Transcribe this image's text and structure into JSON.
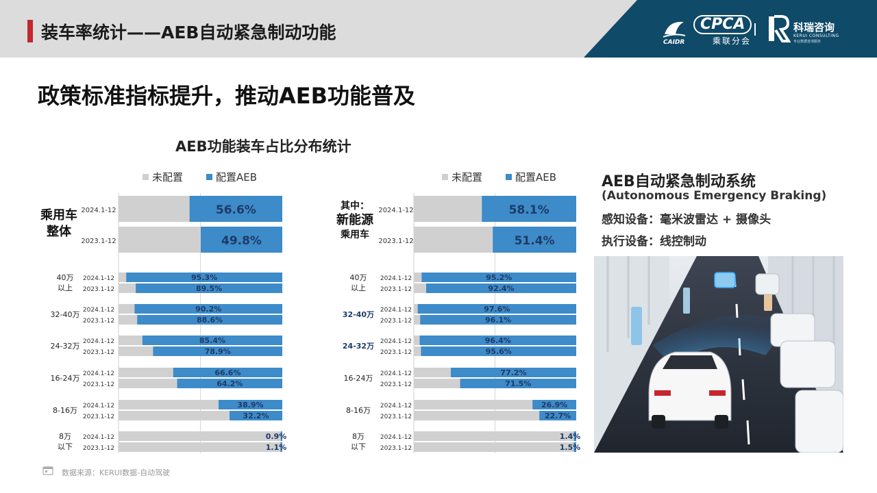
{
  "header": {
    "title": "装车率统计——AEB自动紧急制动功能",
    "logos": {
      "cpca_text": "CPCA",
      "cpca_sub": "乘联分会",
      "cpca_caidr": "CAIDR",
      "kerui_name": "科瑞咨询",
      "kerui_en": "KERUI CONSULTING",
      "kerui_tagline": "专业数据咨询服务"
    }
  },
  "slide_title": "政策标准指标提升，推动AEB功能普及",
  "chart_title": "AEB功能装车占比分布统计",
  "legend": {
    "not_configured": "未配置",
    "configured": "配置AEB"
  },
  "colors": {
    "configured": "#3d8bc9",
    "not_configured": "#d0d0d0",
    "value_text": "#1f3a66",
    "accent": "#c0282e"
  },
  "right_panel": {
    "title": "AEB自动紧急制动系统",
    "subtitle_en": "(Autonomous Emergency Braking)",
    "sensing": "感知设备：毫米波雷达 + 摄像头",
    "actuator": "执行设备：线控制动"
  },
  "source": "数据来源：KERUI数据-自动驾驶",
  "chart_data": [
    {
      "type": "bar",
      "stacked": true,
      "orientation": "horizontal",
      "panel": "乘用车整体",
      "group_label_lines": [
        "乘用车",
        "整体"
      ],
      "summary": {
        "rows": [
          {
            "period": "2024.1-12",
            "value": 56.6,
            "label": "56.6%"
          },
          {
            "period": "2023.1-12",
            "value": 49.8,
            "label": "49.8%"
          }
        ]
      },
      "segments": [
        {
          "label_lines": [
            "40万",
            "以上"
          ],
          "rows": [
            {
              "period": "2024.1-12",
              "value": 95.3,
              "label": "95.3%"
            },
            {
              "period": "2023.1-12",
              "value": 89.5,
              "label": "89.5%"
            }
          ]
        },
        {
          "label_lines": [
            "32-40万"
          ],
          "rows": [
            {
              "period": "2024.1-12",
              "value": 90.2,
              "label": "90.2%"
            },
            {
              "period": "2023.1-12",
              "value": 88.6,
              "label": "88.6%"
            }
          ]
        },
        {
          "label_lines": [
            "24-32万"
          ],
          "rows": [
            {
              "period": "2024.1-12",
              "value": 85.4,
              "label": "85.4%"
            },
            {
              "period": "2023.1-12",
              "value": 78.9,
              "label": "78.9%"
            }
          ]
        },
        {
          "label_lines": [
            "16-24万"
          ],
          "rows": [
            {
              "period": "2024.1-12",
              "value": 66.6,
              "label": "66.6%"
            },
            {
              "period": "2023.1-12",
              "value": 64.2,
              "label": "64.2%"
            }
          ]
        },
        {
          "label_lines": [
            "8-16万"
          ],
          "rows": [
            {
              "period": "2024.1-12",
              "value": 38.9,
              "label": "38.9%"
            },
            {
              "period": "2023.1-12",
              "value": 32.2,
              "label": "32.2%"
            }
          ]
        },
        {
          "label_lines": [
            "8万",
            "以下"
          ],
          "rows": [
            {
              "period": "2024.1-12",
              "value": 0.9,
              "label": "0.9%"
            },
            {
              "period": "2023.1-12",
              "value": 1.1,
              "label": "1.1%"
            }
          ]
        }
      ],
      "xlim": [
        0,
        100
      ]
    },
    {
      "type": "bar",
      "stacked": true,
      "orientation": "horizontal",
      "panel": "其中：新能源乘用车",
      "group_label_lines": [
        "其中：",
        "新能源",
        "乘用车"
      ],
      "summary": {
        "rows": [
          {
            "period": "2024.1-12",
            "value": 58.1,
            "label": "58.1%"
          },
          {
            "period": "2023.1-12",
            "value": 51.4,
            "label": "51.4%"
          }
        ]
      },
      "segments": [
        {
          "label_lines": [
            "40万",
            "以上"
          ],
          "rows": [
            {
              "period": "2024.1-12",
              "value": 95.2,
              "label": "95.2%"
            },
            {
              "period": "2023.1-12",
              "value": 92.4,
              "label": "92.4%"
            }
          ]
        },
        {
          "label_lines": [
            "32-40万"
          ],
          "emphasis": true,
          "rows": [
            {
              "period": "2024.1-12",
              "value": 97.6,
              "label": "97.6%"
            },
            {
              "period": "2023.1-12",
              "value": 96.1,
              "label": "96.1%"
            }
          ]
        },
        {
          "label_lines": [
            "24-32万"
          ],
          "emphasis": true,
          "rows": [
            {
              "period": "2024.1-12",
              "value": 96.4,
              "label": "96.4%"
            },
            {
              "period": "2023.1-12",
              "value": 95.6,
              "label": "95.6%"
            }
          ]
        },
        {
          "label_lines": [
            "16-24万"
          ],
          "rows": [
            {
              "period": "2024.1-12",
              "value": 77.2,
              "label": "77.2%"
            },
            {
              "period": "2023.1-12",
              "value": 71.5,
              "label": "71.5%"
            }
          ]
        },
        {
          "label_lines": [
            "8-16万"
          ],
          "rows": [
            {
              "period": "2024.1-12",
              "value": 26.9,
              "label": "26.9%"
            },
            {
              "period": "2023.1-12",
              "value": 22.7,
              "label": "22.7%"
            }
          ]
        },
        {
          "label_lines": [
            "8万",
            "以下"
          ],
          "rows": [
            {
              "period": "2024.1-12",
              "value": 1.4,
              "label": "1.4%"
            },
            {
              "period": "2023.1-12",
              "value": 1.5,
              "label": "1.5%"
            }
          ]
        }
      ],
      "xlim": [
        0,
        100
      ]
    }
  ]
}
